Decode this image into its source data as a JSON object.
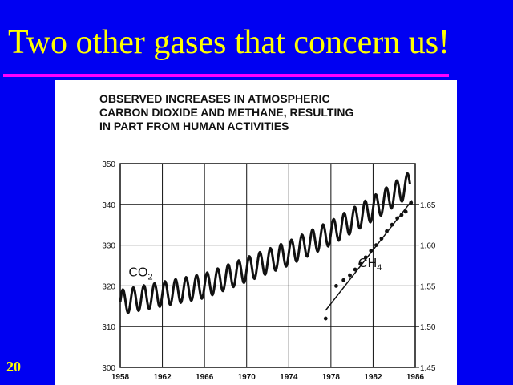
{
  "slide": {
    "title": "Two other gases that concern us!",
    "number": "20"
  },
  "colors": {
    "background": "#0000f2",
    "title": "#ffff00",
    "rule": "#ff00ff"
  },
  "chart_data": {
    "type": "line",
    "title_lines": [
      "OBSERVED INCREASES IN ATMOSPHERIC",
      "CARBON DIOXIDE AND METHANE, RESULTING",
      "IN PART FROM HUMAN ACTIVITIES"
    ],
    "xlabel": "",
    "ylabel": "",
    "xlim": [
      1958,
      1986
    ],
    "x_ticks": [
      "1958",
      "1962",
      "1966",
      "1970",
      "1974",
      "1978",
      "1982",
      "1986"
    ],
    "ylim_left": [
      300,
      350
    ],
    "y_ticks_left": [
      "300",
      "310",
      "320",
      "330",
      "340",
      "350"
    ],
    "ylim_right": [
      1.45,
      1.7
    ],
    "y_ticks_right": [
      "1.45",
      "1.50",
      "1.55",
      "1.60",
      "1.65"
    ],
    "grid": true,
    "series": [
      {
        "name": "CO",
        "subscript": "2",
        "axis": "left",
        "style": "line",
        "trend": {
          "x": [
            1958,
            1966,
            1974,
            1978,
            1982,
            1985.5
          ],
          "y": [
            316,
            320,
            328,
            333,
            339,
            345
          ]
        },
        "seasonal_amplitude": 3,
        "cycle_years": 1
      },
      {
        "name": "CH",
        "subscript": "4",
        "axis": "right",
        "style": "points-with-fit",
        "points": {
          "x": [
            1977.5,
            1978.5,
            1979.2,
            1979.8,
            1980.3,
            1980.8,
            1981.3,
            1981.8,
            1982.3,
            1982.8,
            1983.3,
            1983.8,
            1984.3,
            1984.7,
            1985.1,
            1985.6
          ],
          "y": [
            1.51,
            1.55,
            1.557,
            1.563,
            1.57,
            1.577,
            1.585,
            1.593,
            1.6,
            1.608,
            1.617,
            1.625,
            1.633,
            1.637,
            1.641,
            1.652
          ]
        },
        "fit": {
          "x": [
            1977.5,
            1985.7
          ],
          "y": [
            1.52,
            1.655
          ]
        }
      }
    ]
  }
}
